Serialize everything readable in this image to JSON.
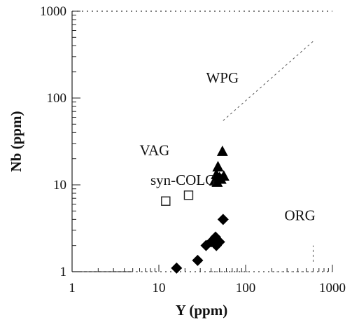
{
  "chart_data": {
    "type": "scatter",
    "title": "",
    "xlabel": "Y (ppm)",
    "ylabel": "Nb (ppm)",
    "x_scale": "log",
    "y_scale": "log",
    "xlim": [
      1,
      1000
    ],
    "ylim": [
      1,
      1000
    ],
    "x_ticks": [
      "1",
      "10",
      "100",
      "1000"
    ],
    "y_ticks": [
      "1",
      "10",
      "100",
      "1000"
    ],
    "grid": false,
    "legend": "none",
    "field_labels": [
      {
        "text": "WPG",
        "x": 35,
        "y": 150
      },
      {
        "text": "VAG",
        "x": 6,
        "y": 22
      },
      {
        "text": "syn-COLG",
        "x": 8,
        "y": 10
      },
      {
        "text": "ORG",
        "x": 280,
        "y": 3.9
      }
    ],
    "boundaries": [
      {
        "name": "",
        "points": [
          [
            55,
            55
          ],
          [
            600,
            450
          ]
        ]
      },
      {
        "name": "",
        "points": [
          [
            1,
            1
          ],
          [
            9,
            1
          ]
        ]
      },
      {
        "name": "",
        "points": [
          [
            40,
            1
          ],
          [
            110,
            1
          ]
        ]
      },
      {
        "name": "",
        "points": [
          [
            200,
            1
          ],
          [
            600,
            1
          ]
        ]
      },
      {
        "name": "",
        "points": [
          [
            600,
            1.3
          ],
          [
            600,
            2
          ]
        ]
      }
    ],
    "series": [
      {
        "marker": "square-open",
        "color": "#222222",
        "points": [
          [
            12,
            6.5
          ],
          [
            22,
            7.6
          ]
        ]
      },
      {
        "marker": "triangle",
        "color": "#000000",
        "points": [
          [
            54,
            24
          ],
          [
            48,
            16
          ],
          [
            46,
            13
          ],
          [
            50,
            12
          ],
          [
            44,
            11
          ],
          [
            52,
            11.5
          ],
          [
            47,
            10.6
          ],
          [
            56,
            12.5
          ]
        ]
      },
      {
        "marker": "diamond",
        "color": "#000000",
        "points": [
          [
            16,
            1.1
          ],
          [
            28,
            1.35
          ],
          [
            35,
            2.0
          ],
          [
            40,
            2.2
          ],
          [
            43,
            2.3
          ],
          [
            45,
            2.5
          ],
          [
            50,
            2.2
          ],
          [
            46,
            2.0
          ],
          [
            55,
            4.0
          ]
        ]
      }
    ]
  }
}
